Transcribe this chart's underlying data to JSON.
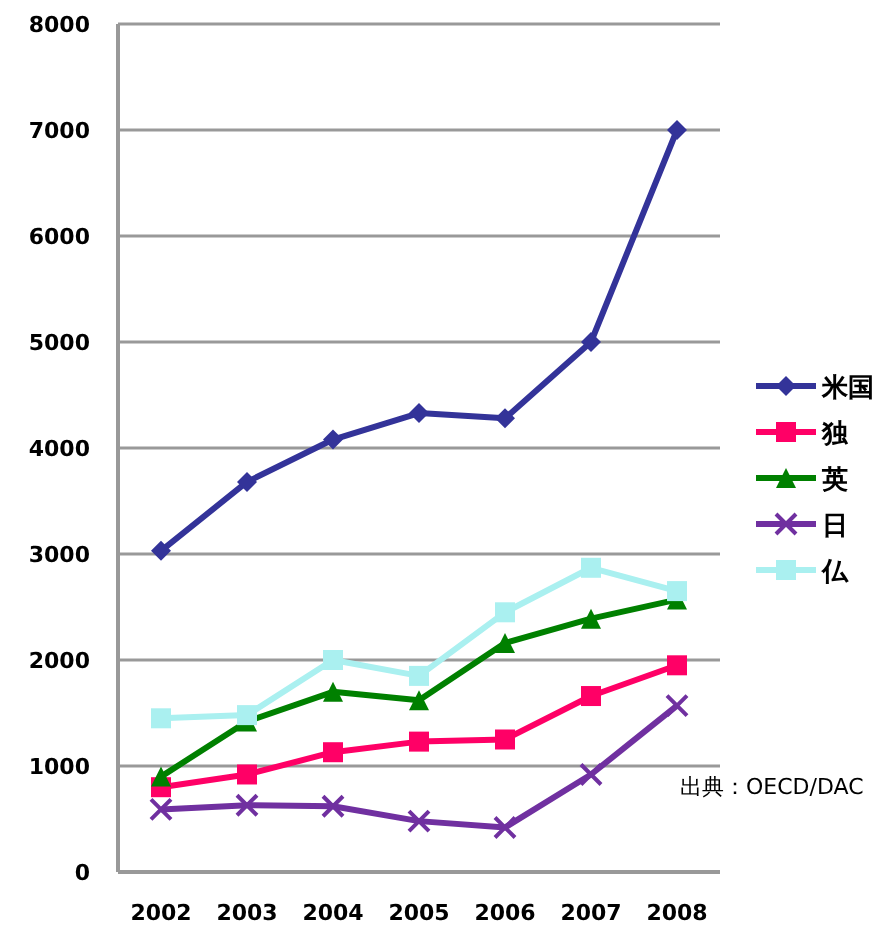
{
  "chart_data": {
    "type": "line",
    "categories": [
      "2002",
      "2003",
      "2004",
      "2005",
      "2006",
      "2007",
      "2008"
    ],
    "ylim": [
      0,
      8000
    ],
    "yticks": [
      0,
      1000,
      2000,
      3000,
      4000,
      5000,
      6000,
      7000,
      8000
    ],
    "grid": "y",
    "legend": "right",
    "annotations": [
      "出典：OECD/DAC"
    ],
    "series": [
      {
        "name": "米国",
        "color": "#333399",
        "marker": "diamond",
        "values": [
          3030,
          3680,
          4080,
          4330,
          4280,
          5000,
          7000
        ]
      },
      {
        "name": "独",
        "color": "#ff0066",
        "marker": "square",
        "values": [
          800,
          920,
          1130,
          1230,
          1250,
          1660,
          1950
        ]
      },
      {
        "name": "英",
        "color": "#008000",
        "marker": "triangle",
        "values": [
          900,
          1420,
          1700,
          1620,
          2160,
          2390,
          2570
        ]
      },
      {
        "name": "日",
        "color": "#7030a0",
        "marker": "cross",
        "values": [
          590,
          630,
          620,
          480,
          420,
          920,
          1570
        ]
      },
      {
        "name": "仏",
        "color": "#aaf0f0",
        "marker": "square",
        "values": [
          1450,
          1480,
          2000,
          1850,
          2450,
          2870,
          2650
        ]
      }
    ]
  }
}
